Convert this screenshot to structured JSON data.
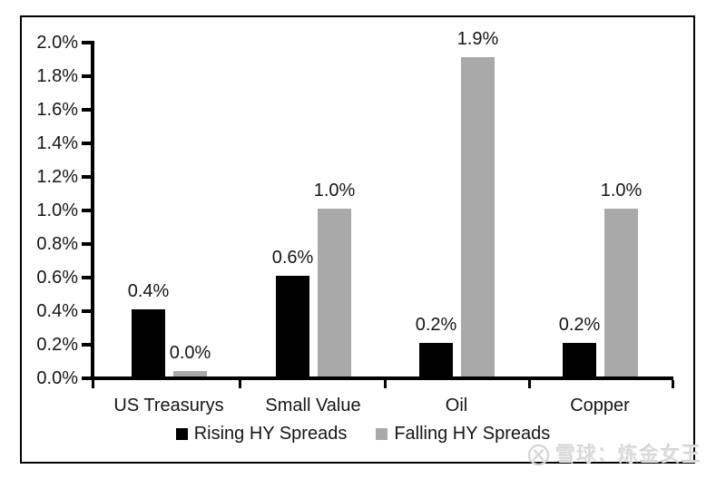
{
  "chart_data": {
    "type": "bar",
    "categories": [
      "US Treasurys",
      "Small Value",
      "Oil",
      "Copper"
    ],
    "series": [
      {
        "name": "Rising HY Spreads",
        "color": "#000000",
        "values": [
          0.4,
          0.6,
          0.2,
          0.2
        ],
        "labels": [
          "0.4%",
          "0.6%",
          "0.2%",
          "0.2%"
        ]
      },
      {
        "name": "Falling HY Spreads",
        "color": "#a9a9a9",
        "values": [
          0.0,
          1.0,
          1.9,
          1.0
        ],
        "labels": [
          "0.0%",
          "1.0%",
          "1.9%",
          "1.0%"
        ]
      }
    ],
    "y_axis": {
      "tick_labels": [
        "2.0%",
        "1.8%",
        "1.6%",
        "1.4%",
        "1.2%",
        "1.0%",
        "0.8%",
        "0.6%",
        "0.4%",
        "0.2%",
        "0.0%"
      ],
      "min": 0.0,
      "max": 2.0,
      "step": 0.2
    },
    "title": "",
    "xlabel": "",
    "ylabel": "",
    "grid": false,
    "legend_position": "bottom",
    "axis_color": "#000000",
    "text_color": "#161616"
  },
  "watermark": {
    "source_label": "雪球：炼金女王"
  }
}
